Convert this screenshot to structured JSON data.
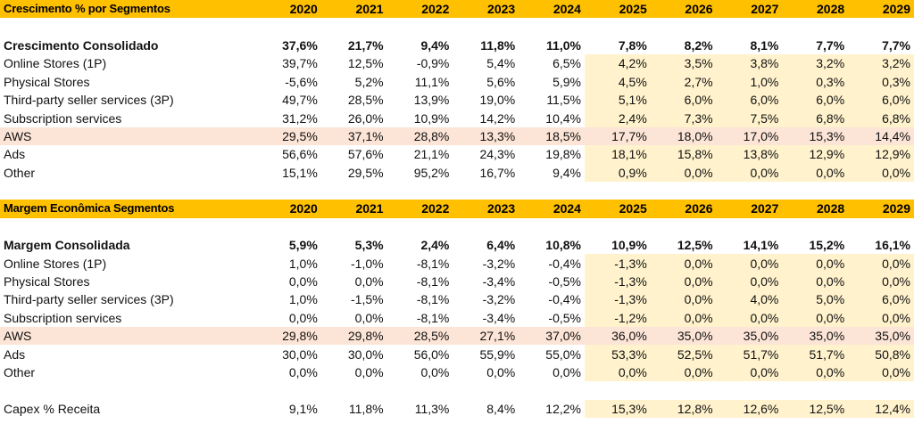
{
  "years": [
    "2020",
    "2021",
    "2022",
    "2023",
    "2024",
    "2025",
    "2026",
    "2027",
    "2028",
    "2029"
  ],
  "sections": [
    {
      "title": "Crescimento % por Segmentos",
      "total": {
        "label": "Crescimento Consolidado",
        "values": [
          "37,6%",
          "21,7%",
          "9,4%",
          "11,8%",
          "11,0%",
          "7,8%",
          "8,2%",
          "8,1%",
          "7,7%",
          "7,7%"
        ]
      },
      "rows": [
        {
          "label": "Online Stores (1P)",
          "values": [
            "39,7%",
            "12,5%",
            "-0,9%",
            "5,4%",
            "6,5%",
            "4,2%",
            "3,5%",
            "3,8%",
            "3,2%",
            "3,2%"
          ]
        },
        {
          "label": "Physical Stores",
          "values": [
            "-5,6%",
            "5,2%",
            "11,1%",
            "5,6%",
            "5,9%",
            "4,5%",
            "2,7%",
            "1,0%",
            "0,3%",
            "0,3%"
          ]
        },
        {
          "label": "Third-party seller services (3P)",
          "values": [
            "49,7%",
            "28,5%",
            "13,9%",
            "19,0%",
            "11,5%",
            "5,1%",
            "6,0%",
            "6,0%",
            "6,0%",
            "6,0%"
          ]
        },
        {
          "label": "Subscription services",
          "values": [
            "31,2%",
            "26,0%",
            "10,9%",
            "14,2%",
            "10,4%",
            "2,4%",
            "7,3%",
            "7,5%",
            "6,8%",
            "6,8%"
          ]
        },
        {
          "label": "AWS",
          "values": [
            "29,5%",
            "37,1%",
            "28,8%",
            "13,3%",
            "18,5%",
            "17,7%",
            "18,0%",
            "17,0%",
            "15,3%",
            "14,4%"
          ]
        },
        {
          "label": "Ads",
          "values": [
            "56,6%",
            "57,6%",
            "21,1%",
            "24,3%",
            "19,8%",
            "18,1%",
            "15,8%",
            "13,8%",
            "12,9%",
            "12,9%"
          ]
        },
        {
          "label": "Other",
          "values": [
            "15,1%",
            "29,5%",
            "95,2%",
            "16,7%",
            "9,4%",
            "0,9%",
            "0,0%",
            "0,0%",
            "0,0%",
            "0,0%"
          ]
        }
      ]
    },
    {
      "title": "Margem Econômica Segmentos",
      "total": {
        "label": "Margem Consolidada",
        "values": [
          "5,9%",
          "5,3%",
          "2,4%",
          "6,4%",
          "10,8%",
          "10,9%",
          "12,5%",
          "14,1%",
          "15,2%",
          "16,1%"
        ]
      },
      "rows": [
        {
          "label": "Online Stores (1P)",
          "values": [
            "1,0%",
            "-1,0%",
            "-8,1%",
            "-3,2%",
            "-0,4%",
            "-1,3%",
            "0,0%",
            "0,0%",
            "0,0%",
            "0,0%"
          ]
        },
        {
          "label": "Physical Stores",
          "values": [
            "0,0%",
            "0,0%",
            "-8,1%",
            "-3,4%",
            "-0,5%",
            "-1,3%",
            "0,0%",
            "0,0%",
            "0,0%",
            "0,0%"
          ]
        },
        {
          "label": "Third-party seller services (3P)",
          "values": [
            "1,0%",
            "-1,5%",
            "-8,1%",
            "-3,2%",
            "-0,4%",
            "-1,3%",
            "0,0%",
            "4,0%",
            "5,0%",
            "6,0%"
          ]
        },
        {
          "label": "Subscription services",
          "values": [
            "0,0%",
            "0,0%",
            "-8,1%",
            "-3,4%",
            "-0,5%",
            "-1,2%",
            "0,0%",
            "0,0%",
            "0,0%",
            "0,0%"
          ]
        },
        {
          "label": "AWS",
          "values": [
            "29,8%",
            "29,8%",
            "28,5%",
            "27,1%",
            "37,0%",
            "36,0%",
            "35,0%",
            "35,0%",
            "35,0%",
            "35,0%"
          ]
        },
        {
          "label": "Ads",
          "values": [
            "30,0%",
            "30,0%",
            "56,0%",
            "55,9%",
            "55,0%",
            "53,3%",
            "52,5%",
            "51,7%",
            "51,7%",
            "50,8%"
          ]
        },
        {
          "label": "Other",
          "values": [
            "0,0%",
            "0,0%",
            "0,0%",
            "0,0%",
            "0,0%",
            "0,0%",
            "0,0%",
            "0,0%",
            "0,0%",
            "0,0%"
          ]
        }
      ]
    }
  ],
  "capex": {
    "label": "Capex % Receita",
    "values": [
      "9,1%",
      "11,8%",
      "11,3%",
      "8,4%",
      "12,2%",
      "15,3%",
      "12,8%",
      "12,6%",
      "12,5%",
      "12,4%"
    ]
  },
  "colors": {
    "header": "#ffc000",
    "projection_fill": "#fff2cc",
    "aws_fill": "#fce4d6",
    "projection_text": "#1f1fe0"
  }
}
